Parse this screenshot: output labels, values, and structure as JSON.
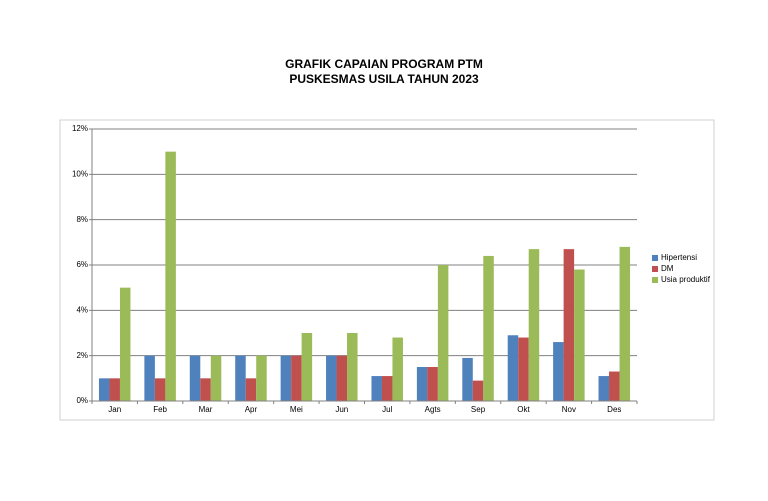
{
  "chart_data": {
    "type": "bar",
    "title": "GRAFIK CAPAIAN PROGRAM PTM",
    "subtitle": "PUSKESMAS USILA TAHUN 2023",
    "categories": [
      "Jan",
      "Feb",
      "Mar",
      "Apr",
      "Mei",
      "Jun",
      "Jul",
      "Agts",
      "Sep",
      "Okt",
      "Nov",
      "Des"
    ],
    "series": [
      {
        "name": "Hipertensi",
        "color": "#4f81bd",
        "values": [
          1.0,
          2.0,
          2.0,
          2.0,
          2.0,
          2.0,
          1.1,
          1.5,
          1.9,
          2.9,
          2.6,
          1.1
        ]
      },
      {
        "name": "DM",
        "color": "#c0504d",
        "values": [
          1.0,
          1.0,
          1.0,
          1.0,
          2.0,
          2.0,
          1.1,
          1.5,
          0.9,
          2.8,
          6.7,
          1.3
        ]
      },
      {
        "name": "Usia produktif",
        "color": "#9bbb59",
        "values": [
          5.0,
          11.0,
          2.0,
          2.0,
          3.0,
          3.0,
          2.8,
          6.0,
          6.4,
          6.7,
          5.8,
          6.8
        ]
      }
    ],
    "ylim": [
      0,
      12
    ],
    "yticks": [
      {
        "value": 0,
        "label": "0%"
      },
      {
        "value": 2,
        "label": "2%"
      },
      {
        "value": 4,
        "label": "4%"
      },
      {
        "value": 6,
        "label": "6%"
      },
      {
        "value": 8,
        "label": "8%"
      },
      {
        "value": 10,
        "label": "10%"
      },
      {
        "value": 12,
        "label": "12%"
      }
    ],
    "grid": true,
    "legend": "right"
  }
}
